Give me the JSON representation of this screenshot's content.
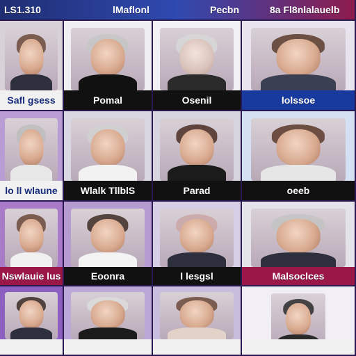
{
  "top": {
    "left_number": "LS1.310",
    "mid_name_1": "lMaflonl",
    "mid_name_2": "Pecbn",
    "right_text": "8a Fl8nlalauelb"
  },
  "rows": [
    {
      "cells": [
        {
          "label": "Safl gsess",
          "style": "light"
        },
        {
          "label": "Pomal",
          "style": "dark"
        },
        {
          "label": "Osenil",
          "style": "dark"
        },
        {
          "label": "lolssoe",
          "style": "blue"
        }
      ]
    },
    {
      "cells": [
        {
          "label": "lo ll wlaune",
          "style": "light"
        },
        {
          "label": "Wlalk TllblS",
          "style": "dark"
        },
        {
          "label": "Parad",
          "style": "dark"
        },
        {
          "label": "oeeb",
          "style": "dark"
        }
      ]
    },
    {
      "cells": [
        {
          "label": "Nswlauie lus",
          "style": "pink"
        },
        {
          "label": "Eoonra",
          "style": "dark"
        },
        {
          "label": "l lesgsl",
          "style": "dark"
        },
        {
          "label": "Malsoclces",
          "style": "pink"
        }
      ]
    },
    {
      "cells": [
        {
          "label": "",
          "style": "light"
        },
        {
          "label": "",
          "style": "light"
        },
        {
          "label": "",
          "style": "light"
        },
        {
          "label": "",
          "style": "light"
        }
      ]
    }
  ]
}
